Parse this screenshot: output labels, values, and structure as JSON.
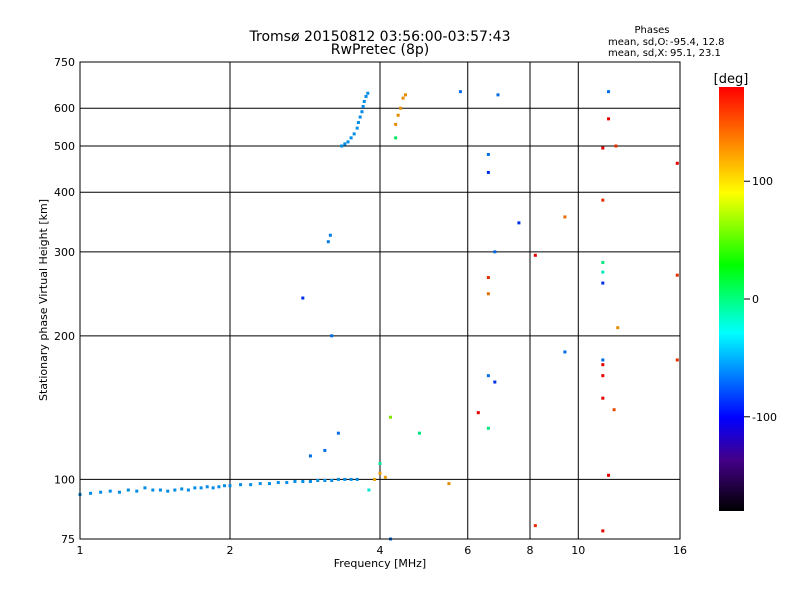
{
  "chart_data": {
    "type": "scatter",
    "title": "Tromsø 20150812 03:56:00-03:57:43",
    "subtitle": "RwPretec (8p)",
    "xlabel": "Frequency [MHz]",
    "ylabel": "Stationary phase Virtual Height [km]",
    "x_scale": "log",
    "y_scale": "log",
    "xlim": [
      1,
      16
    ],
    "ylim": [
      75,
      750
    ],
    "x_ticks": [
      "1",
      "2",
      "4",
      "6",
      "8",
      "10",
      "16"
    ],
    "y_ticks": [
      "75",
      "100",
      "200",
      "300",
      "400",
      "500",
      "600",
      "750"
    ],
    "grid": true,
    "phases": {
      "heading": "Phases",
      "o_label": "mean, sd,O:",
      "o_values": "-95.4, 12.8",
      "x_label": "mean, sd,X:",
      "x_values": "95.1, 23.1"
    },
    "colorbar": {
      "label": "[deg]",
      "range": [
        -180,
        180
      ],
      "ticks": [
        "100",
        "0",
        "-100"
      ]
    },
    "o_trace_low": {
      "phase": -100,
      "points": [
        [
          1.0,
          93
        ],
        [
          1.05,
          93.5
        ],
        [
          1.1,
          94
        ],
        [
          1.15,
          94.5
        ],
        [
          1.2,
          94
        ],
        [
          1.25,
          95
        ],
        [
          1.3,
          94.5
        ],
        [
          1.35,
          96
        ],
        [
          1.4,
          95
        ],
        [
          1.45,
          95
        ],
        [
          1.5,
          94.5
        ],
        [
          1.55,
          95
        ],
        [
          1.6,
          95.5
        ],
        [
          1.65,
          95
        ],
        [
          1.7,
          96
        ],
        [
          1.75,
          96
        ],
        [
          1.8,
          96.5
        ],
        [
          1.85,
          96
        ],
        [
          1.9,
          96.5
        ],
        [
          1.95,
          97
        ],
        [
          2.0,
          97
        ],
        [
          2.1,
          97.5
        ],
        [
          2.2,
          97.5
        ],
        [
          2.3,
          98
        ],
        [
          2.4,
          98
        ],
        [
          2.5,
          98.5
        ],
        [
          2.6,
          98.5
        ],
        [
          2.7,
          99
        ],
        [
          2.8,
          99
        ],
        [
          2.9,
          99
        ],
        [
          3.0,
          99.5
        ],
        [
          3.1,
          99.5
        ],
        [
          3.2,
          99.5
        ],
        [
          3.3,
          100
        ],
        [
          3.4,
          100
        ],
        [
          3.5,
          100
        ],
        [
          3.6,
          100
        ]
      ]
    },
    "o_trace_high": {
      "phase": -100,
      "points": [
        [
          3.35,
          500
        ],
        [
          3.4,
          505
        ],
        [
          3.45,
          510
        ],
        [
          3.5,
          520
        ],
        [
          3.55,
          530
        ],
        [
          3.6,
          545
        ],
        [
          3.62,
          560
        ],
        [
          3.65,
          575
        ],
        [
          3.68,
          590
        ],
        [
          3.7,
          605
        ],
        [
          3.72,
          620
        ],
        [
          3.75,
          635
        ],
        [
          3.78,
          645
        ]
      ]
    },
    "scatter": [
      {
        "x": 2.8,
        "y": 240,
        "phase": -130
      },
      {
        "x": 3.15,
        "y": 315,
        "phase": -105
      },
      {
        "x": 3.18,
        "y": 325,
        "phase": -105
      },
      {
        "x": 3.2,
        "y": 200,
        "phase": -110
      },
      {
        "x": 2.9,
        "y": 112,
        "phase": -110
      },
      {
        "x": 3.1,
        "y": 115,
        "phase": -110
      },
      {
        "x": 3.3,
        "y": 125,
        "phase": -110
      },
      {
        "x": 3.8,
        "y": 95,
        "phase": -65
      },
      {
        "x": 3.9,
        "y": 100,
        "phase": 95
      },
      {
        "x": 4.0,
        "y": 103,
        "phase": 95
      },
      {
        "x": 4.1,
        "y": 101,
        "phase": 95
      },
      {
        "x": 4.0,
        "y": 108,
        "phase": -50
      },
      {
        "x": 4.3,
        "y": 555,
        "phase": 100
      },
      {
        "x": 4.35,
        "y": 580,
        "phase": 100
      },
      {
        "x": 4.4,
        "y": 600,
        "phase": 100
      },
      {
        "x": 4.45,
        "y": 630,
        "phase": 100
      },
      {
        "x": 4.5,
        "y": 640,
        "phase": 100
      },
      {
        "x": 4.3,
        "y": 520,
        "phase": -30
      },
      {
        "x": 4.2,
        "y": 135,
        "phase": 40
      },
      {
        "x": 4.8,
        "y": 125,
        "phase": -40
      },
      {
        "x": 4.2,
        "y": 75,
        "phase": -110
      },
      {
        "x": 5.5,
        "y": 98,
        "phase": 100
      },
      {
        "x": 5.8,
        "y": 650,
        "phase": -110
      },
      {
        "x": 6.6,
        "y": 480,
        "phase": -110
      },
      {
        "x": 6.6,
        "y": 440,
        "phase": -130
      },
      {
        "x": 6.8,
        "y": 300,
        "phase": -110
      },
      {
        "x": 6.6,
        "y": 265,
        "phase": 130
      },
      {
        "x": 6.6,
        "y": 245,
        "phase": 110
      },
      {
        "x": 6.6,
        "y": 165,
        "phase": -110
      },
      {
        "x": 6.8,
        "y": 160,
        "phase": -130
      },
      {
        "x": 6.3,
        "y": 138,
        "phase": 160
      },
      {
        "x": 6.6,
        "y": 128,
        "phase": -40
      },
      {
        "x": 6.9,
        "y": 640,
        "phase": -110
      },
      {
        "x": 7.6,
        "y": 345,
        "phase": -130
      },
      {
        "x": 8.2,
        "y": 295,
        "phase": 160
      },
      {
        "x": 8.2,
        "y": 80,
        "phase": 130
      },
      {
        "x": 9.4,
        "y": 355,
        "phase": 110
      },
      {
        "x": 9.4,
        "y": 185,
        "phase": -110
      },
      {
        "x": 11.5,
        "y": 650,
        "phase": -110
      },
      {
        "x": 11.5,
        "y": 570,
        "phase": 160
      },
      {
        "x": 11.2,
        "y": 495,
        "phase": 160
      },
      {
        "x": 11.9,
        "y": 500,
        "phase": 130
      },
      {
        "x": 11.2,
        "y": 385,
        "phase": 130
      },
      {
        "x": 11.2,
        "y": 285,
        "phase": -40
      },
      {
        "x": 11.2,
        "y": 272,
        "phase": -60
      },
      {
        "x": 11.2,
        "y": 258,
        "phase": -130
      },
      {
        "x": 11.2,
        "y": 178,
        "phase": -110
      },
      {
        "x": 11.2,
        "y": 174,
        "phase": 160
      },
      {
        "x": 11.2,
        "y": 165,
        "phase": 160
      },
      {
        "x": 11.2,
        "y": 148,
        "phase": 160
      },
      {
        "x": 11.8,
        "y": 140,
        "phase": 120
      },
      {
        "x": 12.0,
        "y": 208,
        "phase": 100
      },
      {
        "x": 11.5,
        "y": 102,
        "phase": 160
      },
      {
        "x": 11.2,
        "y": 78,
        "phase": 160
      },
      {
        "x": 15.8,
        "y": 460,
        "phase": 160
      },
      {
        "x": 15.8,
        "y": 268,
        "phase": 130
      },
      {
        "x": 15.8,
        "y": 178,
        "phase": 130
      }
    ]
  }
}
